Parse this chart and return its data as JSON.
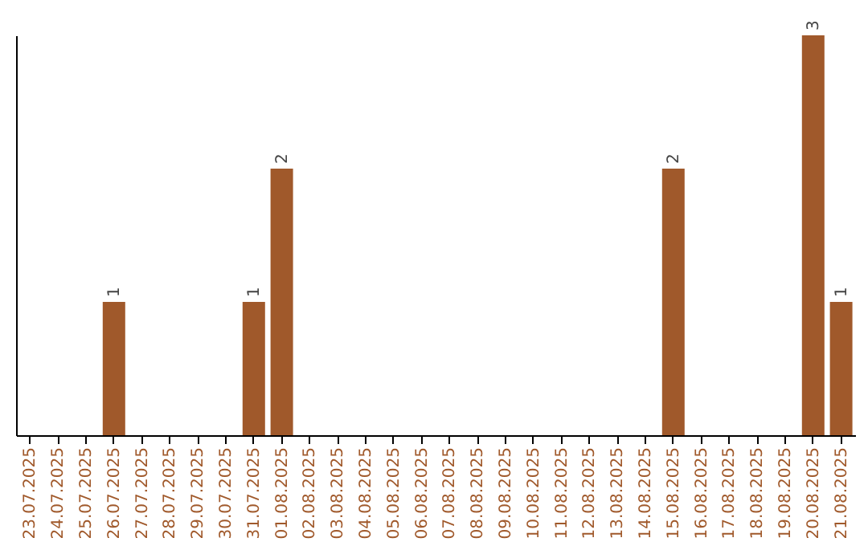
{
  "chart_data": {
    "type": "bar",
    "categories": [
      "23.07.2025",
      "24.07.2025",
      "25.07.2025",
      "26.07.2025",
      "27.07.2025",
      "28.07.2025",
      "29.07.2025",
      "30.07.2025",
      "31.07.2025",
      "01.08.2025",
      "02.08.2025",
      "03.08.2025",
      "04.08.2025",
      "05.08.2025",
      "06.08.2025",
      "07.08.2025",
      "08.08.2025",
      "09.08.2025",
      "10.08.2025",
      "11.08.2025",
      "12.08.2025",
      "13.08.2025",
      "14.08.2025",
      "15.08.2025",
      "16.08.2025",
      "17.08.2025",
      "18.08.2025",
      "19.08.2025",
      "20.08.2025",
      "21.08.2025"
    ],
    "values": [
      0,
      0,
      0,
      1,
      0,
      0,
      0,
      0,
      1,
      2,
      0,
      0,
      0,
      0,
      0,
      0,
      0,
      0,
      0,
      0,
      0,
      0,
      0,
      2,
      0,
      0,
      0,
      0,
      3,
      1
    ],
    "value_labels": [
      null,
      null,
      null,
      "1",
      null,
      null,
      null,
      null,
      "1",
      "2",
      null,
      null,
      null,
      null,
      null,
      null,
      null,
      null,
      null,
      null,
      null,
      null,
      null,
      "2",
      null,
      null,
      null,
      null,
      "3",
      "1"
    ],
    "color": "#a0592b",
    "tick_labels": "x",
    "grid": false
  }
}
